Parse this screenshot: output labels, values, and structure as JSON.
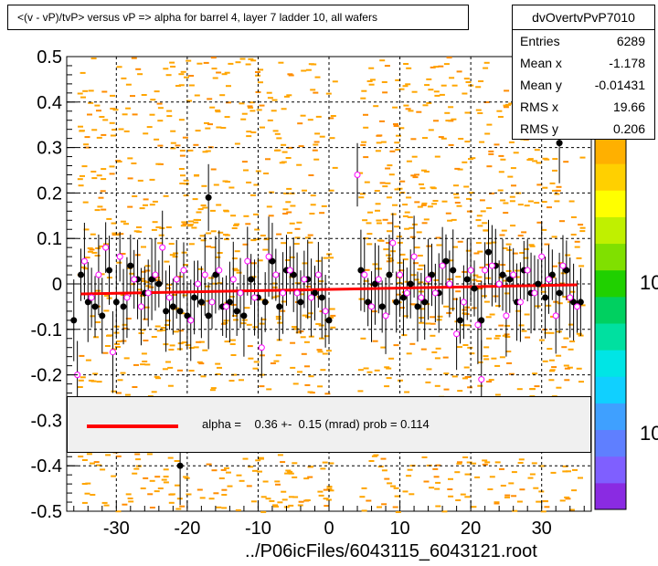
{
  "title": "<(v - vP)/tvP> versus   vP => alpha for barrel 4, layer 7 ladder 10, all wafers",
  "source_label": "../P06icFiles/6043115_6043121.root",
  "stats": {
    "name": "dvOvertvPvP7010",
    "rows": [
      {
        "label": "Entries",
        "value": "6289"
      },
      {
        "label": "Mean x",
        "value": "-1.178"
      },
      {
        "label": "Mean y",
        "value": "-0.01431"
      },
      {
        "label": "RMS x",
        "value": "19.66"
      },
      {
        "label": "RMS y",
        "value": "0.206"
      }
    ]
  },
  "fit": {
    "text": "alpha =    0.36 +-  0.15 (mrad) prob = 0.114",
    "color": "#ff0000"
  },
  "palette_labels": [
    "10",
    "10"
  ],
  "colors": {
    "hist": "#ffa500",
    "black_points": "#000000",
    "open_points": "#ff00ff",
    "fit": "#ff0000"
  },
  "palette_colors": [
    "#8a2be2",
    "#7f5fff",
    "#5f7fff",
    "#3fa0ff",
    "#10d0ff",
    "#00e5e5",
    "#00e0a0",
    "#00d060",
    "#20d000",
    "#80e000",
    "#c0f000",
    "#ffff00",
    "#ffd000",
    "#ffb000"
  ],
  "chart_data": {
    "type": "scatter",
    "xlabel": "",
    "ylabel": "",
    "xlim": [
      -37,
      37
    ],
    "ylim": [
      -0.5,
      0.5
    ],
    "xticks": [
      -30,
      -20,
      -10,
      0,
      10,
      20,
      30
    ],
    "yticks": [
      0.5,
      0.4,
      0.3,
      0.2,
      0.1,
      0,
      -0.1,
      -0.2,
      -0.3,
      -0.4,
      -0.5
    ],
    "grid": true,
    "fit_line": {
      "x": [
        -35,
        35
      ],
      "y": [
        -0.022,
        -0.002
      ]
    },
    "series": [
      {
        "marker": "filled-circle",
        "points": [
          [
            -36.0,
            -0.08
          ],
          [
            -35.0,
            0.02
          ],
          [
            -34.0,
            -0.04
          ],
          [
            -33.0,
            -0.05
          ],
          [
            -32.0,
            -0.07
          ],
          [
            -31.0,
            0.03
          ],
          [
            -30.0,
            -0.04
          ],
          [
            -29.0,
            -0.05
          ],
          [
            -28.0,
            0.04
          ],
          [
            -27.0,
            0.01
          ],
          [
            -26.0,
            -0.02
          ],
          [
            -25.0,
            0.01
          ],
          [
            -24.0,
            0.0
          ],
          [
            -23.0,
            -0.06
          ],
          [
            -22.0,
            -0.05
          ],
          [
            -21.0,
            -0.06
          ],
          [
            -20.0,
            -0.07
          ],
          [
            -19.0,
            -0.03
          ],
          [
            -18.0,
            -0.04
          ],
          [
            -17.0,
            -0.07
          ],
          [
            -16.0,
            0.02
          ],
          [
            -15.0,
            -0.05
          ],
          [
            -14.0,
            -0.04
          ],
          [
            -13.0,
            -0.06
          ],
          [
            -12.0,
            -0.07
          ],
          [
            -11.0,
            0.01
          ],
          [
            -10.0,
            -0.03
          ],
          [
            -9.0,
            -0.04
          ],
          [
            -8.0,
            0.05
          ],
          [
            -7.0,
            -0.05
          ],
          [
            -6.0,
            0.03
          ],
          [
            -5.0,
            0.02
          ],
          [
            -4.0,
            -0.04
          ],
          [
            -3.0,
            0.01
          ],
          [
            -2.0,
            -0.02
          ],
          [
            -1.0,
            -0.03
          ],
          [
            0.0,
            -0.08
          ],
          [
            4.5,
            0.03
          ],
          [
            5.5,
            -0.04
          ],
          [
            6.5,
            0.0
          ],
          [
            7.5,
            -0.05
          ],
          [
            8.5,
            0.02
          ],
          [
            9.5,
            -0.04
          ],
          [
            10.5,
            -0.03
          ],
          [
            11.5,
            0.0
          ],
          [
            12.5,
            -0.05
          ],
          [
            13.5,
            -0.04
          ],
          [
            14.5,
            0.02
          ],
          [
            15.5,
            -0.02
          ],
          [
            16.5,
            0.05
          ],
          [
            17.5,
            0.03
          ],
          [
            18.5,
            -0.08
          ],
          [
            19.5,
            0.01
          ],
          [
            20.5,
            -0.01
          ],
          [
            21.5,
            -0.08
          ],
          [
            22.5,
            0.07
          ],
          [
            23.5,
            0.04
          ],
          [
            24.5,
            0.02
          ],
          [
            25.5,
            0.01
          ],
          [
            26.5,
            -0.04
          ],
          [
            27.5,
            0.03
          ],
          [
            28.5,
            -0.02
          ],
          [
            29.5,
            0.0
          ],
          [
            30.5,
            -0.03
          ],
          [
            31.5,
            0.02
          ],
          [
            32.5,
            -0.02
          ],
          [
            33.5,
            0.03
          ],
          [
            34.5,
            -0.04
          ],
          [
            35.5,
            -0.04
          ],
          [
            -17.0,
            0.19
          ],
          [
            32.5,
            0.31
          ],
          [
            -21.0,
            -0.4
          ]
        ]
      },
      {
        "marker": "open-circle",
        "points": [
          [
            -35.5,
            -0.2
          ],
          [
            -34.5,
            0.05
          ],
          [
            -33.5,
            -0.03
          ],
          [
            -32.5,
            0.02
          ],
          [
            -31.5,
            0.08
          ],
          [
            -30.5,
            -0.15
          ],
          [
            -29.5,
            0.06
          ],
          [
            -28.5,
            -0.03
          ],
          [
            -27.5,
            0.01
          ],
          [
            -26.5,
            -0.05
          ],
          [
            -25.5,
            -0.02
          ],
          [
            -24.5,
            0.02
          ],
          [
            -23.5,
            0.08
          ],
          [
            -22.5,
            -0.03
          ],
          [
            -21.5,
            0.01
          ],
          [
            -20.5,
            0.03
          ],
          [
            -19.5,
            -0.08
          ],
          [
            -18.5,
            0.0
          ],
          [
            -17.5,
            0.02
          ],
          [
            -16.5,
            -0.04
          ],
          [
            -15.5,
            0.03
          ],
          [
            -14.5,
            -0.05
          ],
          [
            -13.5,
            0.01
          ],
          [
            -12.5,
            -0.02
          ],
          [
            -11.5,
            0.05
          ],
          [
            -10.5,
            -0.03
          ],
          [
            -9.5,
            -0.14
          ],
          [
            -8.5,
            0.06
          ],
          [
            -7.5,
            0.02
          ],
          [
            -6.5,
            -0.02
          ],
          [
            -5.5,
            0.03
          ],
          [
            -4.5,
            -0.02
          ],
          [
            -3.5,
            0.01
          ],
          [
            -2.5,
            -0.03
          ],
          [
            -1.5,
            0.02
          ],
          [
            -0.5,
            -0.06
          ],
          [
            4.0,
            0.24
          ],
          [
            5.0,
            0.02
          ],
          [
            6.0,
            -0.05
          ],
          [
            7.0,
            0.01
          ],
          [
            8.0,
            -0.07
          ],
          [
            9.0,
            0.09
          ],
          [
            10.0,
            0.02
          ],
          [
            11.0,
            -0.02
          ],
          [
            12.0,
            0.06
          ],
          [
            13.0,
            -0.03
          ],
          [
            14.0,
            0.01
          ],
          [
            15.0,
            -0.02
          ],
          [
            16.0,
            0.04
          ],
          [
            17.0,
            0.0
          ],
          [
            18.0,
            -0.11
          ],
          [
            19.0,
            -0.04
          ],
          [
            20.0,
            0.03
          ],
          [
            21.0,
            -0.09
          ],
          [
            21.5,
            -0.21
          ],
          [
            22.0,
            0.03
          ],
          [
            23.0,
            0.04
          ],
          [
            24.0,
            0.0
          ],
          [
            25.0,
            -0.07
          ],
          [
            26.0,
            0.02
          ],
          [
            27.0,
            -0.04
          ],
          [
            28.0,
            0.03
          ],
          [
            29.0,
            -0.02
          ],
          [
            30.0,
            0.06
          ],
          [
            31.0,
            0.01
          ],
          [
            32.0,
            -0.07
          ],
          [
            33.0,
            0.04
          ],
          [
            34.0,
            -0.03
          ],
          [
            35.0,
            -0.05
          ]
        ]
      }
    ]
  }
}
